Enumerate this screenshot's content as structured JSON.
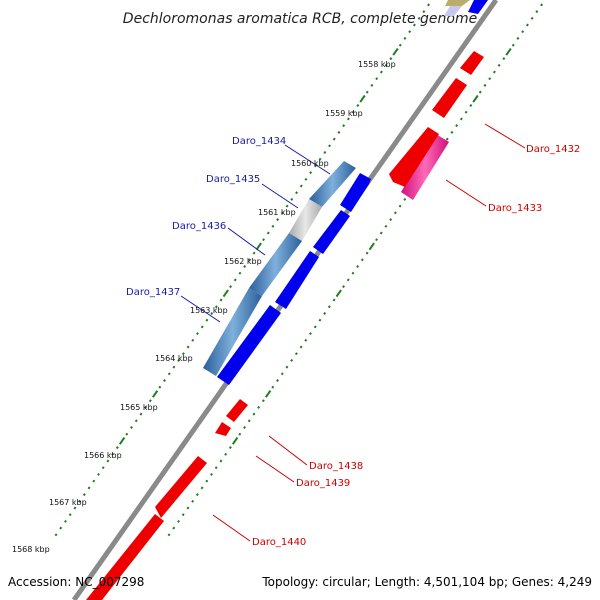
{
  "title": "Dechloromonas aromatica RCB, complete genome",
  "tick_labels": [
    "1558 kbp",
    "1559 kbp",
    "1560 kbp",
    "1561 kbp",
    "1562 kbp",
    "1563 kbp",
    "1564 kbp",
    "1565 kbp",
    "1566 kbp",
    "1567 kbp",
    "1568 kbp"
  ],
  "genes": {
    "forward": [
      "Daro_1434",
      "Daro_1435",
      "Daro_1436",
      "Daro_1437"
    ],
    "reverse": [
      "Daro_1432",
      "Daro_1433",
      "Daro_1438",
      "Daro_1439",
      "Daro_1440"
    ]
  },
  "footer": {
    "accession": "Accession: NC_007298",
    "summary": "Topology: circular; Length: 4,501,104 bp; Genes: 4,249"
  },
  "colors": {
    "forward_cds": "#0000ee",
    "reverse_cds": "#ee0000",
    "forward_gene": "#3f7fbf",
    "reverse_gene": "#ff1493",
    "backbone": "#8a8a8a",
    "tick_marks": "#1e7d1e"
  }
}
